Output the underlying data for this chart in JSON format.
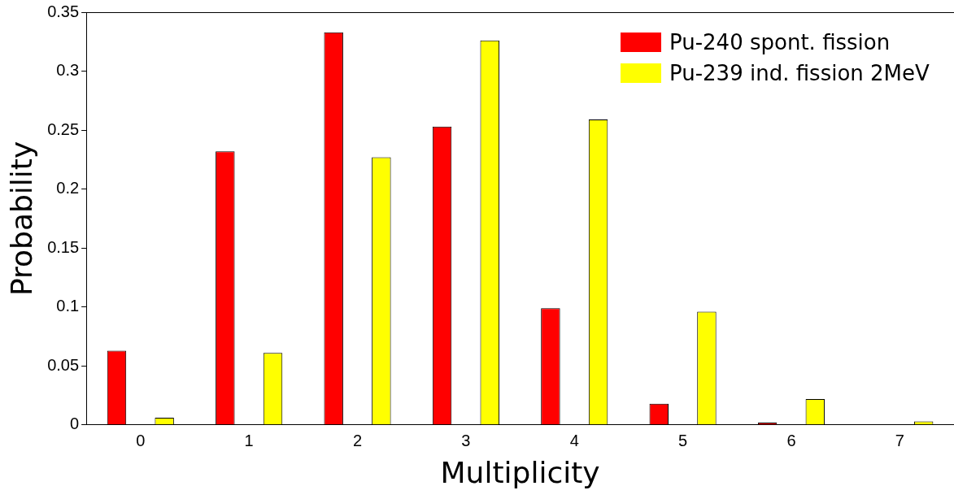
{
  "chart_data": {
    "type": "bar",
    "xlabel": "Multiplicity",
    "ylabel": "Probability",
    "categories": [
      "0",
      "1",
      "2",
      "3",
      "4",
      "5",
      "6",
      "7"
    ],
    "series": [
      {
        "name": "Pu-240 spont. fission",
        "color": "#ff0000",
        "values": [
          0.063,
          0.232,
          0.333,
          0.253,
          0.099,
          0.018,
          0.002,
          0
        ]
      },
      {
        "name": "Pu-239 ind. fission 2MeV",
        "color": "#ffff00",
        "values": [
          0.006,
          0.061,
          0.227,
          0.326,
          0.259,
          0.096,
          0.022,
          0.003
        ]
      }
    ],
    "ylim": [
      0,
      0.35
    ],
    "yticks": [
      0,
      0.05,
      0.1,
      0.15,
      0.2,
      0.25,
      0.3,
      0.35
    ],
    "grid": false,
    "legend": "top right"
  }
}
